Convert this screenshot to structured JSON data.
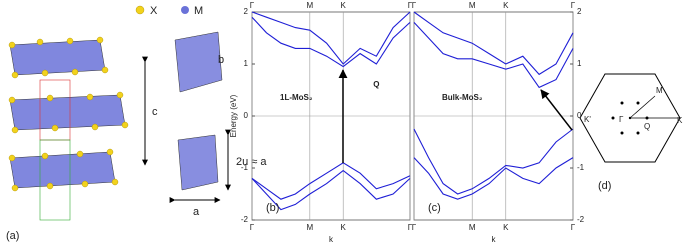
{
  "panel_a": {
    "legend": [
      "X",
      "M"
    ],
    "labels": [
      "c",
      "b",
      "2u ≈ a",
      "a"
    ],
    "panel_label": "(a)"
  },
  "panel_d": {
    "labels": [
      "K'",
      "Γ",
      "Q",
      "K",
      "M"
    ],
    "panel_label": "(d)"
  },
  "chart_data": [
    {
      "type": "line",
      "annotation": "1L-MoS₂",
      "point_label": "Q",
      "panel_label": "(b)",
      "ylabel": "Energy (eV)",
      "xlabel": "k",
      "x": [
        0,
        0.25,
        0.5,
        0.75,
        1.0,
        1.29,
        1.577,
        1.87,
        2.15,
        2.44,
        2.732
      ],
      "series": [
        {
          "color": "#1f1fd6",
          "values": [
            -1.2,
            -1.4,
            -1.6,
            -1.5,
            -1.3,
            -1.1,
            -0.9,
            -1.1,
            -1.4,
            -1.3,
            -1.15
          ]
        },
        {
          "color": "#1f1fd6",
          "values": [
            -1.2,
            -1.5,
            -1.8,
            -1.7,
            -1.5,
            -1.3,
            -1.05,
            -1.3,
            -1.6,
            -1.5,
            -1.2
          ]
        },
        {
          "color": "#1f1fd6",
          "values": [
            1.9,
            1.6,
            1.4,
            1.3,
            1.3,
            1.15,
            0.95,
            1.2,
            1.0,
            1.5,
            1.8
          ]
        },
        {
          "color": "#1f1fd6",
          "values": [
            2,
            1.9,
            1.8,
            1.7,
            1.65,
            1.4,
            1.0,
            1.3,
            1.15,
            1.7,
            2
          ]
        }
      ],
      "xlim": [
        0,
        2.732
      ],
      "xticks": [
        {
          "value": 0,
          "label": "Γ"
        },
        {
          "value": 1,
          "label": "M"
        },
        {
          "value": 1.577,
          "label": "K"
        },
        {
          "value": 2.732,
          "label": "Γ"
        }
      ],
      "ylim": [
        -2,
        2
      ],
      "yticks": [
        -2,
        -1,
        0,
        1,
        2
      ]
    },
    {
      "type": "line",
      "annotation": "Bulk-MoS₂",
      "panel_label": "(c)",
      "xlabel": "k",
      "x": [
        0,
        0.25,
        0.5,
        0.75,
        1.0,
        1.29,
        1.577,
        1.87,
        2.15,
        2.44,
        2.732
      ],
      "series": [
        {
          "color": "#1f1fd6",
          "values": [
            -0.25,
            -0.8,
            -1.3,
            -1.5,
            -1.4,
            -1.2,
            -0.95,
            -1.0,
            -0.9,
            -0.5,
            -0.25
          ]
        },
        {
          "color": "#1f1fd6",
          "values": [
            -0.8,
            -1.1,
            -1.5,
            -1.6,
            -1.5,
            -1.3,
            -1.0,
            -1.2,
            -1.3,
            -1.0,
            -0.8
          ]
        },
        {
          "color": "#1f1fd6",
          "values": [
            1.8,
            1.5,
            1.2,
            1.1,
            1.1,
            1.0,
            0.9,
            1.0,
            0.55,
            0.7,
            1.3
          ]
        },
        {
          "color": "#1f1fd6",
          "values": [
            2,
            1.8,
            1.6,
            1.5,
            1.4,
            1.2,
            1.0,
            1.15,
            0.8,
            1.0,
            1.6
          ]
        }
      ],
      "xlim": [
        0,
        2.732
      ],
      "xticks": [
        {
          "value": 0,
          "label": "Γ"
        },
        {
          "value": 1,
          "label": "M"
        },
        {
          "value": 1.577,
          "label": "K"
        },
        {
          "value": 2.732,
          "label": "Γ"
        }
      ],
      "ylim": [
        -2,
        2
      ],
      "yticks": [
        -2,
        -1,
        0,
        1,
        2
      ]
    }
  ]
}
